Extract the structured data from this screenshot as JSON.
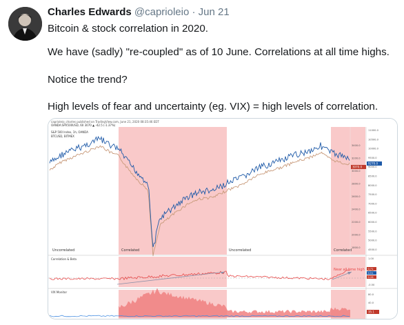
{
  "tweet": {
    "author_name": "Charles Edwards",
    "handle": "@caprioleio",
    "separator": "·",
    "date": "Jun 21",
    "lines": [
      "Bitcoin & stock correlation in 2020.",
      "We have (sadly) \"re-coupled\" as of 10 June. Correlations at all time highs.",
      "Notice the trend?",
      "High levels of fear and uncertainty (eg. VIX) = high levels of correlation."
    ]
  },
  "chart": {
    "header_line1": "caprioleio_charles published on TradingView.com, June 21, 2020 08:35:46 EDT",
    "header_line2": "OANDA:SPX500USD, 60 3070 ▲ -42.5 (-1.37%)",
    "legend_line1": "S&P 500 Index, 1h, OANDA",
    "legend_line2": "BTCUSD, BITMEX",
    "region_labels": [
      "Uncorrelated",
      "Correlated",
      "Uncorrelated",
      "Correlated"
    ],
    "correlation_panel_label": "Correlation & Beta",
    "correlation_annotation": "Near all time high",
    "vix_panel_label": "VIX Monitor",
    "right_axis_ticks": [
      "11000.0",
      "10500.0",
      "10000.0",
      "9500.0",
      "9000.0",
      "8500.0",
      "8000.0",
      "7500.0",
      "7000.0",
      "6500.0",
      "6000.0",
      "5500.0",
      "5000.0",
      "4500.0"
    ],
    "left_axis_ticks": [
      "3400.0",
      "3200.0",
      "3000.0",
      "2800.0",
      "2600.0",
      "2400.0",
      "2200.0",
      "2000.0",
      "1800.0"
    ],
    "price_badge": "9270.0",
    "spx_badge": "3070.0",
    "corr_ticks": [
      "1.00",
      "0.50",
      "-0.50"
    ],
    "corr_badges": [
      "0.71",
      "0.51",
      "0.28"
    ],
    "vix_ticks": [
      "80.0",
      "40.0",
      "20.0"
    ],
    "vix_badge": "35.1",
    "colors": {
      "correlated_shade": "#f9c9c9",
      "btc_line": "#1e5aa8",
      "spx_line": "#c89a7a",
      "corr_line": "#e74848",
      "vix_fill": "#f08080"
    }
  }
}
